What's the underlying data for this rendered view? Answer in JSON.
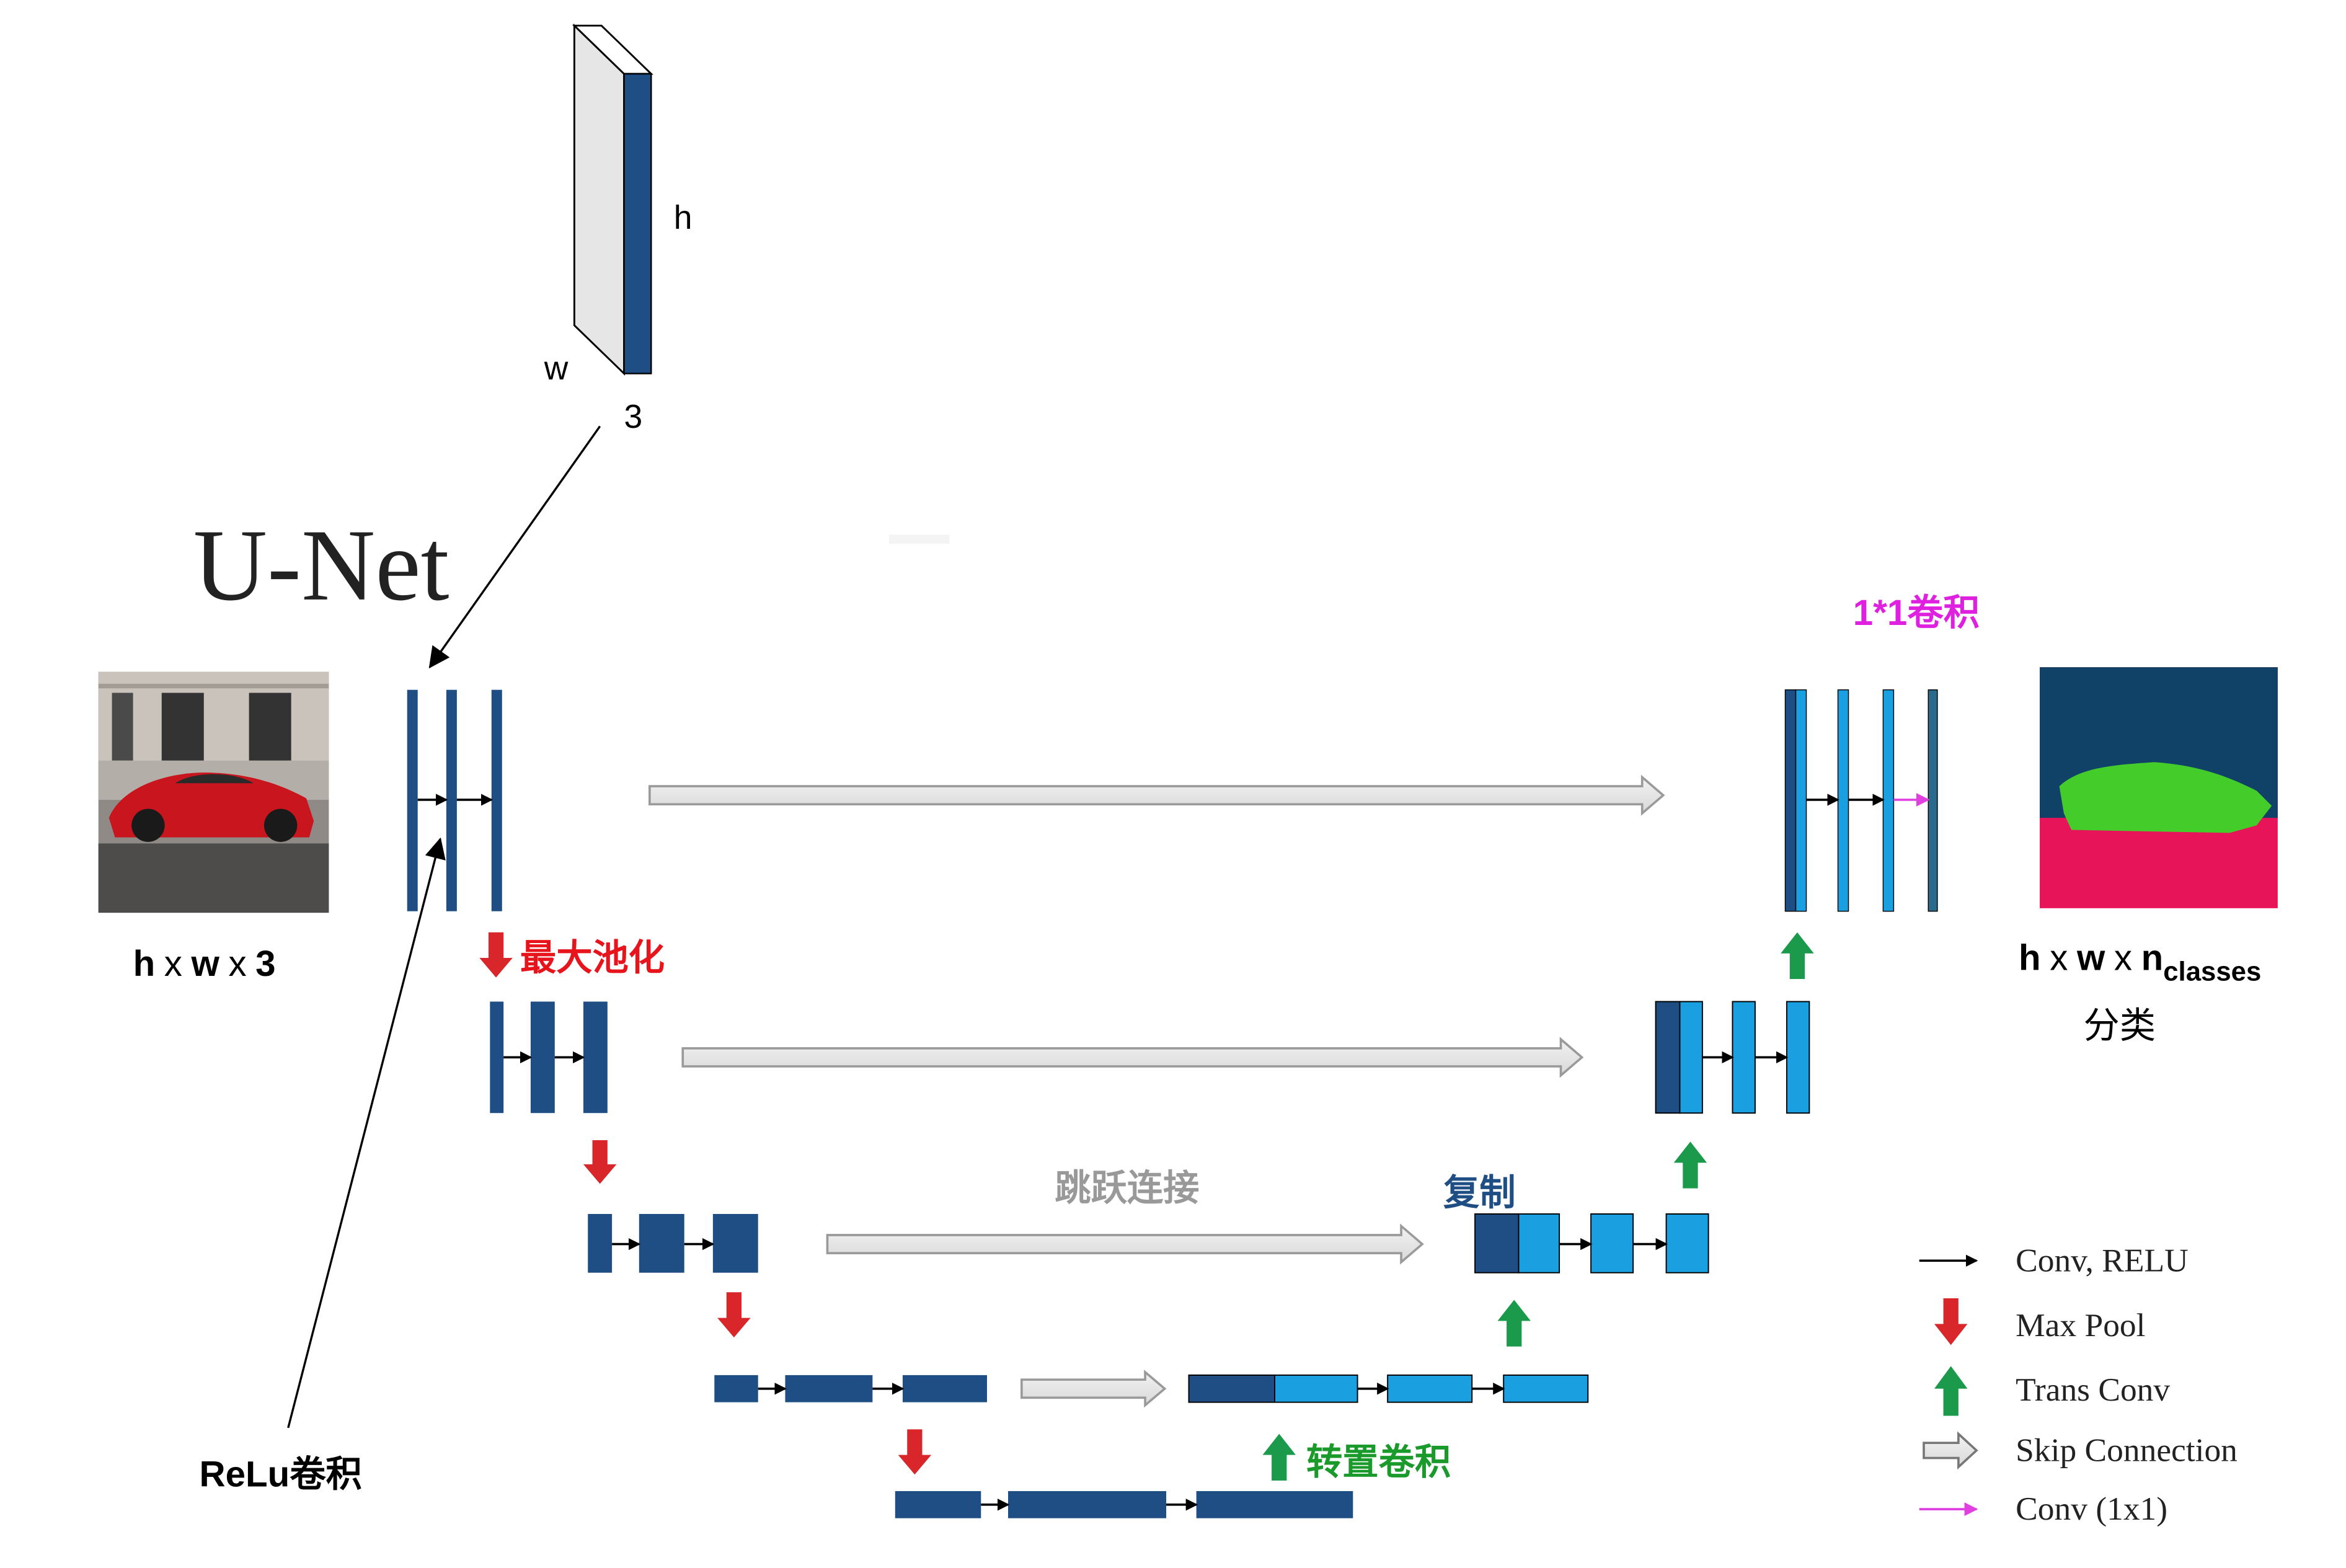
{
  "title": "U-Net",
  "input_block": {
    "h_label": "h",
    "w_label": "w",
    "channels_label": "3"
  },
  "input_caption": {
    "h": "h",
    "x1": "x",
    "w": "w",
    "x2": "x",
    "c": "3"
  },
  "output_caption": {
    "h": "h",
    "x1": "x",
    "w": "w",
    "x2": "x",
    "n": "n",
    "sub": "classes"
  },
  "output_subtitle": "分类",
  "annotations": {
    "conv1x1": "1*1卷积",
    "maxpool": "最大池化",
    "skip": "跳跃连接",
    "copy": "复制",
    "transconv": "转置卷积",
    "relu": "ReLu卷积"
  },
  "legend": [
    {
      "label": "Conv, RELU",
      "icon": "black-arrow-icon"
    },
    {
      "label": "Max Pool",
      "icon": "red-down-arrow-icon"
    },
    {
      "label": "Trans Conv",
      "icon": "green-up-arrow-icon"
    },
    {
      "label": "Skip Connection",
      "icon": "hollow-arrow-icon"
    },
    {
      "label": "Conv (1x1)",
      "icon": "magenta-arrow-icon"
    }
  ],
  "colors": {
    "encoder_block": "#1f4e85",
    "decoder_block": "#1aa0e0",
    "maxpool": "#d9262b",
    "transconv": "#1a9a4a",
    "conv1x1": "#e040e0",
    "label_red": "#e8141c",
    "label_green": "#1a9a2a",
    "label_blue": "#1f4e85",
    "label_magenta": "#e020e0",
    "label_gray": "#999999"
  }
}
